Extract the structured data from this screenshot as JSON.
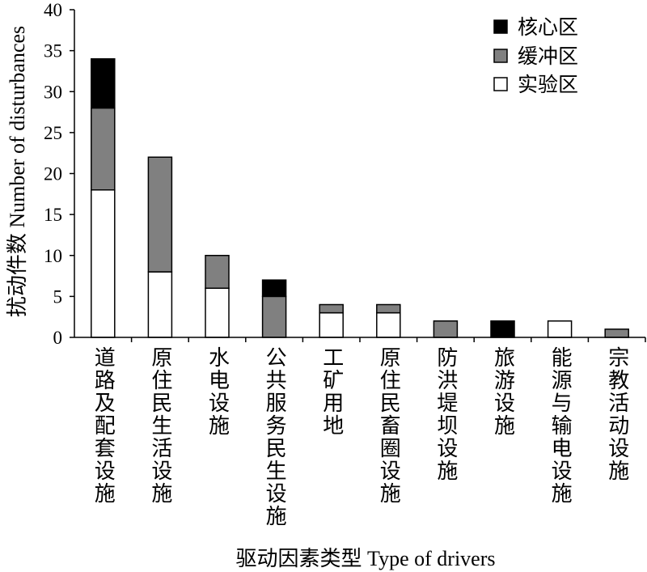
{
  "chart_data": {
    "type": "bar",
    "stacked": true,
    "categories": [
      "道路及配套设施",
      "原住民生活设施",
      "水电设施",
      "公共服务民生设施",
      "工矿用地",
      "原住民畜圈设施",
      "防洪堤坝设施",
      "旅游设施",
      "能源与输电设施",
      "宗教活动设施"
    ],
    "series": [
      {
        "name": "核心区",
        "color": "#000000",
        "values": [
          6,
          0,
          0,
          2,
          0,
          0,
          0,
          2,
          0,
          0
        ]
      },
      {
        "name": "缓冲区",
        "color": "#808080",
        "values": [
          10,
          14,
          4,
          5,
          1,
          1,
          2,
          0,
          0,
          1
        ]
      },
      {
        "name": "实验区",
        "color": "#ffffff",
        "values": [
          18,
          8,
          6,
          0,
          3,
          3,
          0,
          0,
          2,
          0
        ]
      }
    ],
    "xlabel": "驱动因素类型 Type of drivers",
    "ylabel": "扰动件数 Number of disturbances",
    "ylim": [
      0,
      40
    ],
    "yticks": [
      0,
      5,
      10,
      15,
      20,
      25,
      30,
      35,
      40
    ],
    "legend": "top-right",
    "grid": false
  }
}
